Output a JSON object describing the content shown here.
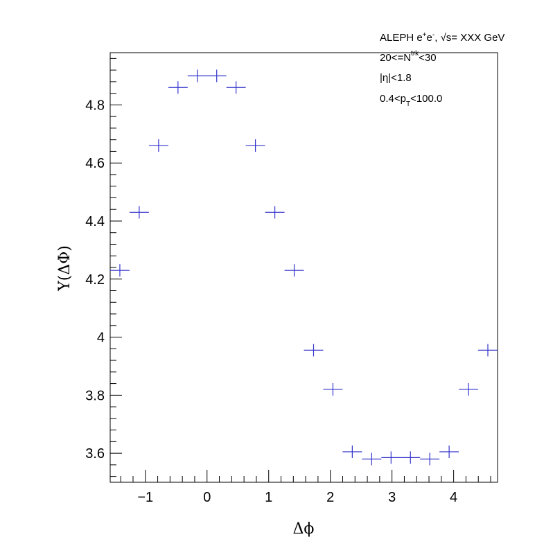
{
  "chart_data": {
    "type": "scatter",
    "xlabel": "Δϕ",
    "ylabel": "Y(ΔΦ)",
    "xlim": [
      -1.5708,
      4.7124
    ],
    "ylim": [
      3.5,
      4.98
    ],
    "x_ticks": [
      -1,
      0,
      1,
      2,
      3,
      4
    ],
    "x_tick_labels": [
      "−1",
      "0",
      "1",
      "2",
      "3",
      "4"
    ],
    "y_ticks": [
      3.6,
      3.8,
      4.0,
      4.2,
      4.4,
      4.6,
      4.8
    ],
    "y_tick_labels": [
      "3.6",
      "3.8",
      "4",
      "4.2",
      "4.4",
      "4.6",
      "4.8"
    ],
    "grid": false,
    "marker_color": "#3333cc",
    "bin_width": 0.3142,
    "series": [
      {
        "x": [
          -1.414,
          -1.1,
          -0.785,
          -0.471,
          -0.157,
          0.157,
          0.471,
          0.785,
          1.1,
          1.414,
          1.728,
          2.042,
          2.356,
          2.67,
          2.985,
          3.299,
          3.613,
          3.927,
          4.241,
          4.555
        ],
        "y": [
          4.23,
          4.43,
          4.66,
          4.86,
          4.9,
          4.9,
          4.86,
          4.66,
          4.43,
          4.23,
          3.955,
          3.82,
          3.605,
          3.58,
          3.585,
          3.585,
          3.58,
          3.605,
          3.82,
          3.955
        ]
      }
    ],
    "annotations": {
      "line1": {
        "pre": "ALEPH e",
        "sup1": "+",
        "mid": "e",
        "sup2": "-",
        "post": ", √s= XXX GeV"
      },
      "line2": {
        "pre": "20<=N",
        "sup": "trk",
        "post": "<30"
      },
      "line3": "|η|<1.8",
      "line4": {
        "pre": "0.4<p",
        "sub": "T",
        "post": "<100.0"
      }
    }
  }
}
